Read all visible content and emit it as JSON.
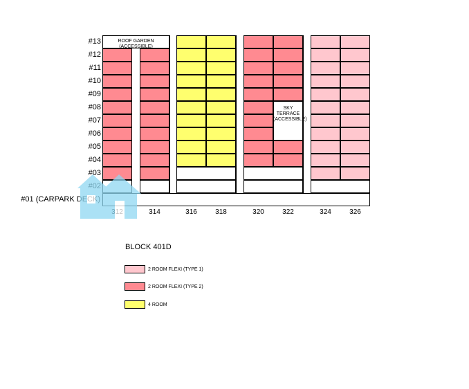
{
  "colors": {
    "type1": "#ffc7ce",
    "type2": "#ff8a91",
    "four_room": "#ffff6e",
    "blank": "#ffffff",
    "watermark": "#8fd8f2"
  },
  "floors": [
    "#13",
    "#12",
    "#11",
    "#10",
    "#09",
    "#08",
    "#07",
    "#06",
    "#05",
    "#04",
    "#03",
    "#02",
    "#01 (CARPARK DECK)"
  ],
  "units": [
    "312",
    "314",
    "316",
    "318",
    "320",
    "322",
    "324",
    "326"
  ],
  "notes": {
    "roof_garden": "ROOF GARDEN (ACCESSIBLE)",
    "sky_terrace": [
      "SKY",
      "TERRACE",
      "(ACCESSIBLE)"
    ]
  },
  "block_title": "BLOCK 401D",
  "legend": [
    {
      "label": "2 ROOM FLEXI (TYPE 1)",
      "color": "#ffc7ce",
      "icon": "swatch-type1"
    },
    {
      "label": "2 ROOM FLEXI (TYPE 2)",
      "color": "#ff8a91",
      "icon": "swatch-type2"
    },
    {
      "label": "4 ROOM",
      "color": "#ffff6e",
      "icon": "swatch-4room"
    }
  ],
  "stack": {
    "312": {
      "type": "type2",
      "floors_from": 3,
      "floors_to": 12
    },
    "314": {
      "type": "type2",
      "floors_from": 3,
      "floors_to": 12
    },
    "316": {
      "type": "four_room",
      "floors_from": 4,
      "floors_to": 13
    },
    "318": {
      "type": "four_room",
      "floors_from": 4,
      "floors_to": 13
    },
    "320": {
      "type": "type2",
      "floors_from": 4,
      "floors_to": 13
    },
    "322": {
      "type": "type2",
      "floors_from": 4,
      "floors_to": 13,
      "sky_terrace_floors": [
        6,
        7,
        8
      ]
    },
    "324": {
      "type": "type1",
      "floors_from": 3,
      "floors_to": 13
    },
    "326": {
      "type": "type1",
      "floors_from": 3,
      "floors_to": 13
    }
  }
}
